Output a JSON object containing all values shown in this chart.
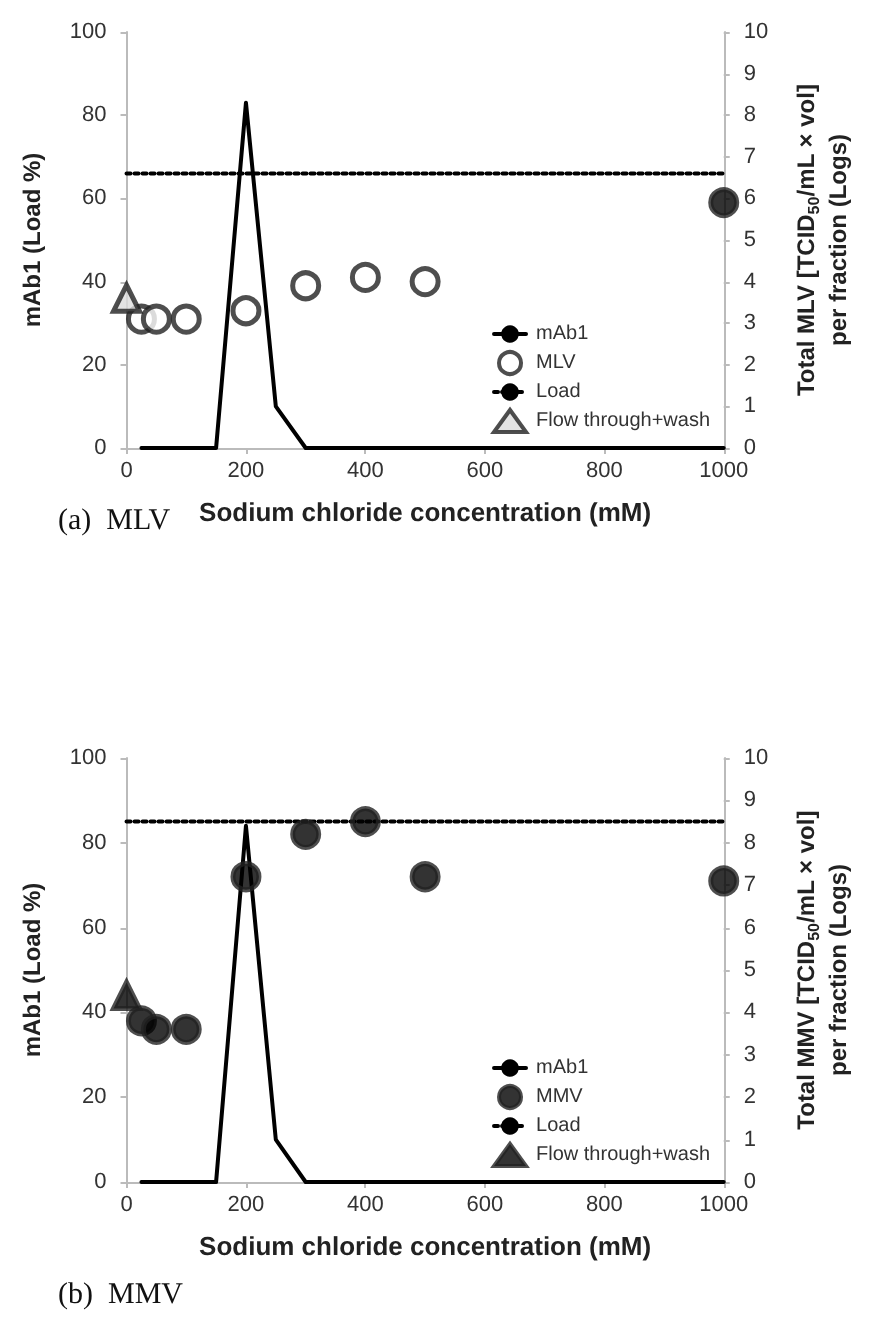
{
  "chart_data": [
    {
      "type": "line",
      "title": "(a)  MLV",
      "xlabel": "Sodium chloride concentration (mM)",
      "ylabel": "mAb1 (Load %)",
      "y2label": "Total MLV [TCID$_{50}$/mL × vol]\nper fraction (Logs)",
      "xlim": [
        0,
        1000
      ],
      "xticks": [
        0,
        200,
        400,
        600,
        800,
        1000
      ],
      "ylim": [
        0,
        100
      ],
      "yticks": [
        0,
        20,
        40,
        60,
        80,
        100
      ],
      "y2lim": [
        0,
        10
      ],
      "y2ticks": [
        0,
        1,
        2,
        3,
        4,
        5,
        6,
        7,
        8,
        9,
        10
      ],
      "grid": false,
      "legend": "bottom right",
      "series": [
        {
          "name": "mAb1",
          "color": "#000000",
          "marker": "none",
          "line_style": "solid",
          "x": [
            25,
            150,
            200,
            250,
            300,
            1000
          ],
          "values": [
            0,
            0,
            83,
            10,
            0,
            0
          ]
        },
        {
          "name": "MLV",
          "type": "scatter",
          "axis": "y2",
          "color": "#ffffff",
          "marker": "circle",
          "x": [
            25,
            50,
            100,
            200,
            300,
            400,
            500
          ],
          "values": [
            3.1,
            3.1,
            3.1,
            3.3,
            3.9,
            4.1,
            4.0
          ]
        },
        {
          "type": "scatter",
          "axis": "y2",
          "color": "#000000",
          "marker": "circle",
          "x": [
            1000
          ],
          "values": [
            5.9
          ]
        },
        {
          "name": "Load",
          "color": "#000000",
          "axis": "y2",
          "marker": "none",
          "line_style": "dotted",
          "x": [
            0,
            1000
          ],
          "values": [
            6.6,
            6.6
          ]
        },
        {
          "name": "Flow through+wash",
          "type": "scatter",
          "axis": "y2",
          "color": "#dddddd",
          "marker": "triangle",
          "x": [
            0
          ],
          "values": [
            3.6
          ]
        }
      ]
    },
    {
      "type": "line",
      "title": "(b)  MMV",
      "xlabel": "Sodium chloride concentration (mM)",
      "ylabel": "mAb1 (Load %)",
      "y2label": "Total MMV [TCID$_{50}$/mL × vol]\nper fraction (Logs)",
      "xlim": [
        0,
        1000
      ],
      "xticks": [
        0,
        200,
        400,
        600,
        800,
        1000
      ],
      "ylim": [
        0,
        100
      ],
      "yticks": [
        0,
        20,
        40,
        60,
        80,
        100
      ],
      "y2lim": [
        0,
        10
      ],
      "y2ticks": [
        0,
        1,
        2,
        3,
        4,
        5,
        6,
        7,
        8,
        9,
        10
      ],
      "grid": false,
      "legend": "bottom right",
      "series": [
        {
          "name": "mAb1",
          "color": "#000000",
          "marker": "none",
          "line_style": "solid",
          "x": [
            25,
            150,
            200,
            250,
            300,
            1000
          ],
          "values": [
            0,
            0,
            84,
            10,
            0,
            0
          ]
        },
        {
          "name": "MMV",
          "type": "scatter",
          "axis": "y2",
          "color": "#000000",
          "marker": "circle",
          "x": [
            25,
            50,
            100,
            200,
            300,
            400,
            500,
            1000
          ],
          "values": [
            3.8,
            3.6,
            3.6,
            7.2,
            8.2,
            8.5,
            7.2,
            7.1
          ]
        },
        {
          "name": "Load",
          "color": "#000000",
          "axis": "y2",
          "marker": "none",
          "line_style": "dotted",
          "x": [
            0,
            1000
          ],
          "values": [
            8.5,
            8.5
          ]
        },
        {
          "name": "Flow through+wash",
          "type": "scatter",
          "axis": "y2",
          "color": "#000000",
          "marker": "triangle",
          "x": [
            0
          ],
          "values": [
            4.4
          ]
        }
      ]
    }
  ]
}
